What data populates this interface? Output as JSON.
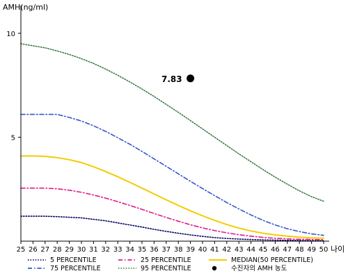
{
  "chart_data": {
    "type": "line",
    "ylabel": "AMH(ng/ml)",
    "xlabel": "나이",
    "xlim": [
      25,
      50
    ],
    "ylim": [
      0,
      11
    ],
    "x": [
      25,
      26,
      27,
      28,
      29,
      30,
      31,
      32,
      33,
      34,
      35,
      36,
      37,
      38,
      39,
      40,
      41,
      42,
      43,
      44,
      45,
      46,
      47,
      48,
      49,
      50
    ],
    "x_ticks": [
      "25",
      "26",
      "27",
      "28",
      "29",
      "30",
      "31",
      "32",
      "33",
      "34",
      "35",
      "36",
      "37",
      "38",
      "39",
      "40",
      "41",
      "42",
      "43",
      "44",
      "45",
      "46",
      "47",
      "48",
      "49",
      "50"
    ],
    "y_ticks": [
      "5",
      "10"
    ],
    "y_tick_values": [
      5,
      10
    ],
    "series": [
      {
        "name": "5 PERCENTILE",
        "color": "#000066",
        "style": "dotted",
        "values": [
          1.2,
          1.2,
          1.2,
          1.18,
          1.15,
          1.12,
          1.05,
          0.98,
          0.88,
          0.78,
          0.68,
          0.57,
          0.47,
          0.38,
          0.3,
          0.23,
          0.17,
          0.13,
          0.1,
          0.08,
          0.06,
          0.05,
          0.04,
          0.03,
          0.02,
          0.02
        ]
      },
      {
        "name": "25 PERCENTILE",
        "color": "#e0198a",
        "style": "dashdot",
        "values": [
          2.55,
          2.55,
          2.55,
          2.52,
          2.45,
          2.35,
          2.22,
          2.07,
          1.9,
          1.72,
          1.53,
          1.33,
          1.14,
          0.96,
          0.79,
          0.64,
          0.51,
          0.4,
          0.31,
          0.24,
          0.18,
          0.14,
          0.11,
          0.09,
          0.08,
          0.07
        ]
      },
      {
        "name": "MEDIAN(50 PERCENTILE)",
        "color": "#f2cc00",
        "style": "solid",
        "values": [
          4.1,
          4.1,
          4.08,
          4.02,
          3.92,
          3.78,
          3.58,
          3.35,
          3.1,
          2.83,
          2.55,
          2.27,
          1.99,
          1.72,
          1.46,
          1.22,
          1.0,
          0.8,
          0.63,
          0.49,
          0.38,
          0.3,
          0.24,
          0.19,
          0.16,
          0.14
        ]
      },
      {
        "name": "75 PERCENTILE",
        "color": "#3355cc",
        "style": "dashdot",
        "values": [
          6.1,
          6.1,
          6.1,
          6.1,
          5.95,
          5.78,
          5.55,
          5.28,
          4.98,
          4.66,
          4.32,
          3.96,
          3.6,
          3.24,
          2.88,
          2.53,
          2.19,
          1.86,
          1.55,
          1.26,
          1.0,
          0.78,
          0.6,
          0.46,
          0.35,
          0.28
        ]
      },
      {
        "name": "95 PERCENTILE",
        "color": "#3a7a48",
        "style": "dotted",
        "values": [
          9.5,
          9.4,
          9.3,
          9.15,
          8.98,
          8.78,
          8.55,
          8.28,
          7.98,
          7.66,
          7.32,
          6.96,
          6.58,
          6.2,
          5.8,
          5.4,
          5.0,
          4.6,
          4.2,
          3.82,
          3.44,
          3.08,
          2.74,
          2.42,
          2.14,
          1.92
        ]
      }
    ],
    "point": {
      "label": "수진자의 AMH 농도",
      "x": 39,
      "y": 7.83,
      "value_label": "7.83",
      "color": "#000000"
    },
    "legend": [
      {
        "label": "5 PERCENTILE",
        "color": "#000066",
        "style": "dotted"
      },
      {
        "label": "25 PERCENTILE",
        "color": "#e0198a",
        "style": "dashdot"
      },
      {
        "label": "MEDIAN(50 PERCENTILE)",
        "color": "#f2cc00",
        "style": "solid"
      },
      {
        "label": "75 PERCENTILE",
        "color": "#3355cc",
        "style": "dashdot"
      },
      {
        "label": "95 PERCENTILE",
        "color": "#3a7a48",
        "style": "dotted"
      },
      {
        "label": "수진자의 AMH 농도",
        "color": "#000000",
        "style": "marker"
      }
    ],
    "legend_placement": "bottom",
    "grid": false
  }
}
